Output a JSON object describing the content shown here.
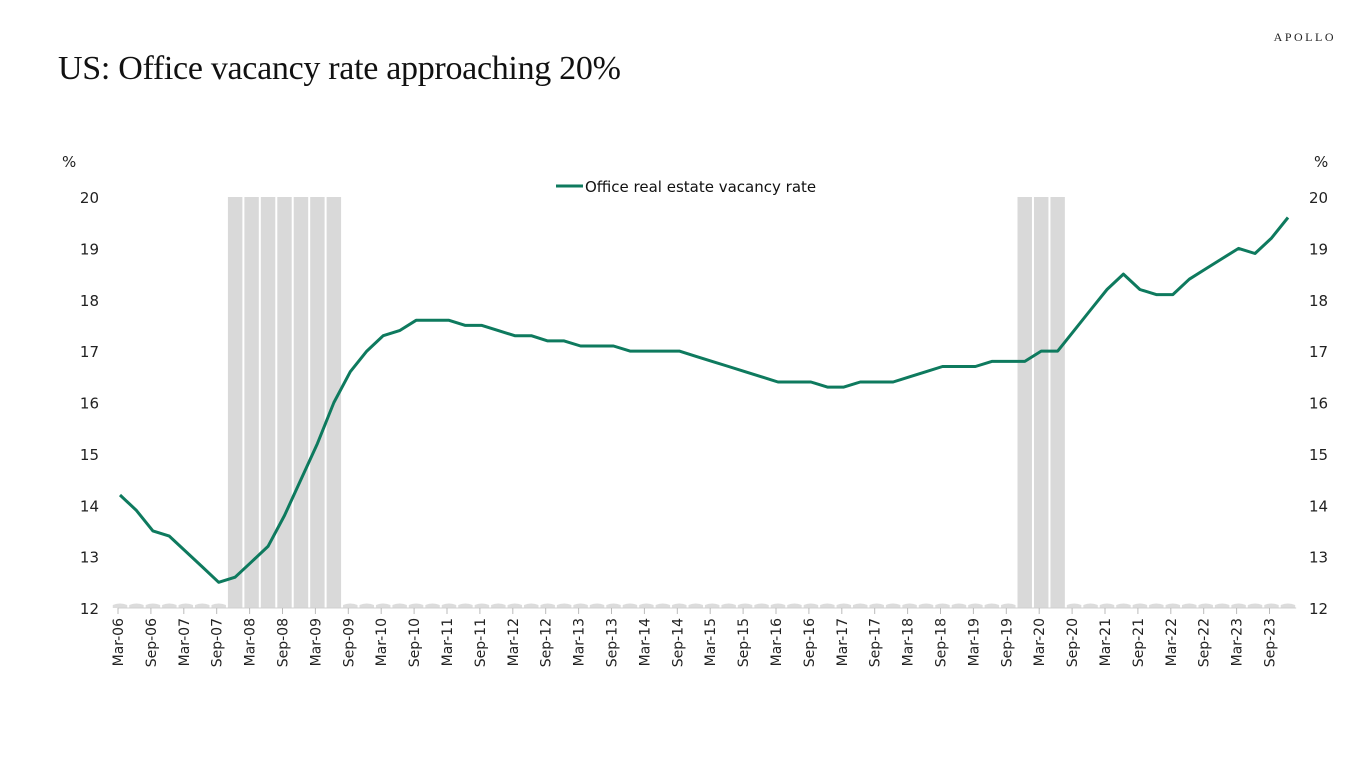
{
  "header": {
    "title": "US: Office vacancy rate approaching 20%",
    "logo": "APOLLO"
  },
  "colors": {
    "line": "#0e7a5e",
    "recession": "#d9d9d9"
  },
  "chart_data": {
    "type": "line",
    "title": "US: Office vacancy rate approaching 20%",
    "xlabel": "",
    "ylabel": "%",
    "ylabel_right": "%",
    "ylim": [
      12,
      20
    ],
    "yticks": [
      12,
      13,
      14,
      15,
      16,
      17,
      18,
      19,
      20
    ],
    "legend": {
      "position": "top-center",
      "entries": [
        "Office real estate vacancy rate"
      ]
    },
    "grid": false,
    "x": [
      "Mar-06",
      "Jun-06",
      "Sep-06",
      "Dec-06",
      "Mar-07",
      "Jun-07",
      "Sep-07",
      "Dec-07",
      "Mar-08",
      "Jun-08",
      "Sep-08",
      "Dec-08",
      "Mar-09",
      "Jun-09",
      "Sep-09",
      "Dec-09",
      "Mar-10",
      "Jun-10",
      "Sep-10",
      "Dec-10",
      "Mar-11",
      "Jun-11",
      "Sep-11",
      "Dec-11",
      "Mar-12",
      "Jun-12",
      "Sep-12",
      "Dec-12",
      "Mar-13",
      "Jun-13",
      "Sep-13",
      "Dec-13",
      "Mar-14",
      "Jun-14",
      "Sep-14",
      "Dec-14",
      "Mar-15",
      "Jun-15",
      "Sep-15",
      "Dec-15",
      "Mar-16",
      "Jun-16",
      "Sep-16",
      "Dec-16",
      "Mar-17",
      "Jun-17",
      "Sep-17",
      "Dec-17",
      "Mar-18",
      "Jun-18",
      "Sep-18",
      "Dec-18",
      "Mar-19",
      "Jun-19",
      "Sep-19",
      "Dec-19",
      "Mar-20",
      "Jun-20",
      "Sep-20",
      "Dec-20",
      "Mar-21",
      "Jun-21",
      "Sep-21",
      "Dec-21",
      "Mar-22",
      "Jun-22",
      "Sep-22",
      "Dec-22",
      "Mar-23",
      "Jun-23",
      "Sep-23",
      "Dec-23"
    ],
    "xtick_labels": [
      "Mar-06",
      "Sep-06",
      "Mar-07",
      "Sep-07",
      "Mar-08",
      "Sep-08",
      "Mar-09",
      "Sep-09",
      "Mar-10",
      "Sep-10",
      "Mar-11",
      "Sep-11",
      "Mar-12",
      "Sep-12",
      "Mar-13",
      "Sep-13",
      "Mar-14",
      "Sep-14",
      "Mar-15",
      "Sep-15",
      "Mar-16",
      "Sep-16",
      "Mar-17",
      "Sep-17",
      "Mar-18",
      "Sep-18",
      "Mar-19",
      "Sep-19",
      "Mar-20",
      "Sep-20",
      "Mar-21",
      "Sep-21",
      "Mar-22",
      "Sep-22",
      "Mar-23",
      "Sep-23"
    ],
    "series": [
      {
        "name": "Office real estate vacancy rate",
        "values": [
          14.2,
          13.9,
          13.5,
          13.4,
          13.1,
          12.8,
          12.5,
          12.6,
          12.9,
          13.2,
          13.8,
          14.5,
          15.2,
          16.0,
          16.6,
          17.0,
          17.3,
          17.4,
          17.6,
          17.6,
          17.6,
          17.5,
          17.5,
          17.4,
          17.3,
          17.3,
          17.2,
          17.2,
          17.1,
          17.1,
          17.1,
          17.0,
          17.0,
          17.0,
          17.0,
          16.9,
          16.8,
          16.7,
          16.6,
          16.5,
          16.4,
          16.4,
          16.4,
          16.3,
          16.3,
          16.4,
          16.4,
          16.4,
          16.5,
          16.6,
          16.7,
          16.7,
          16.7,
          16.8,
          16.8,
          16.8,
          17.0,
          17.0,
          17.4,
          17.8,
          18.2,
          18.5,
          18.2,
          18.1,
          18.1,
          18.4,
          18.6,
          18.8,
          19.0,
          18.9,
          19.2,
          19.6
        ]
      }
    ],
    "recession_periods": [
      {
        "start": "Dec-07",
        "end": "Jun-09"
      },
      {
        "start": "Dec-19",
        "end": "Jun-20"
      }
    ]
  }
}
